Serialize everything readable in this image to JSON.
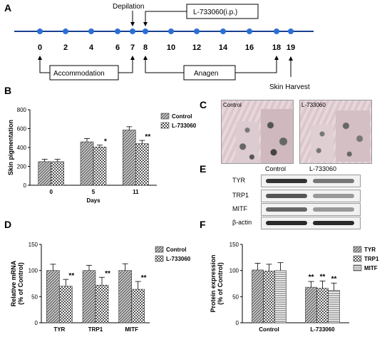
{
  "panel_letters": {
    "a": "A",
    "b": "B",
    "c": "C",
    "d": "D",
    "e": "E",
    "f": "F"
  },
  "timeline": {
    "days": [
      "0",
      "2",
      "4",
      "6",
      "7",
      "8",
      "10",
      "12",
      "14",
      "16",
      "18",
      "19"
    ],
    "depilation_label": "Depilation",
    "drug_label": "L-733060(i.p.)",
    "accommodation_label": "Accommodation",
    "anagen_label": "Anagen",
    "harvest_label": "Skin Harvest",
    "line_color": "#1a3f8f",
    "dot_color": "#2b6fd6"
  },
  "panel_c": {
    "control_label": "Control",
    "treated_label": "L-733060"
  },
  "panel_e": {
    "header_control": "Control",
    "header_treated": "L-733060",
    "rows": [
      "TYR",
      "TRP1",
      "MITF",
      "β-actin"
    ]
  },
  "chart_data": [
    {
      "type": "bar",
      "panel": "B",
      "ylabel": "Skin pigmentation",
      "xlabel": "Days",
      "categories": [
        "0",
        "5",
        "11"
      ],
      "ylim": [
        0,
        800
      ],
      "yticks": [
        "0",
        "200",
        "400",
        "600",
        "800"
      ],
      "series": [
        {
          "name": "Control",
          "values": [
            250,
            460,
            585
          ],
          "errors": [
            25,
            35,
            35
          ],
          "pattern": "hatch"
        },
        {
          "name": "L-733060",
          "values": [
            250,
            405,
            440
          ],
          "errors": [
            25,
            20,
            35
          ],
          "pattern": "check"
        }
      ],
      "significance": [
        "",
        "*",
        "**"
      ],
      "legend": "top-right"
    },
    {
      "type": "bar",
      "panel": "D",
      "ylabel": "Relative mRNA\n(% of Control)",
      "categories": [
        "TYR",
        "TRP1",
        "MITF"
      ],
      "ylim": [
        0,
        150
      ],
      "yticks": [
        "0",
        "50",
        "100",
        "150"
      ],
      "series": [
        {
          "name": "Control",
          "values": [
            100,
            100,
            100
          ],
          "errors": [
            12,
            10,
            13
          ],
          "pattern": "hatch"
        },
        {
          "name": "L-733060",
          "values": [
            70,
            72,
            64
          ],
          "errors": [
            13,
            15,
            15
          ],
          "pattern": "check"
        }
      ],
      "significance": [
        "**",
        "**",
        "**"
      ],
      "legend": "top-right"
    },
    {
      "type": "bar",
      "panel": "F",
      "ylabel": "Protein expression\n(% of Control)",
      "categories": [
        "Control",
        "L-733060"
      ],
      "ylim": [
        0,
        150
      ],
      "yticks": [
        "0",
        "50",
        "100",
        "150"
      ],
      "series": [
        {
          "name": "TYR",
          "values": [
            101,
            68
          ],
          "errors": [
            13,
            11
          ],
          "pattern": "hatch"
        },
        {
          "name": "TRP1",
          "values": [
            99,
            66
          ],
          "errors": [
            13,
            14
          ],
          "pattern": "check"
        },
        {
          "name": "MITF",
          "values": [
            100,
            62
          ],
          "errors": [
            15,
            14
          ],
          "pattern": "hlines"
        }
      ],
      "significance": [
        "",
        "**"
      ],
      "legend": "top-right"
    }
  ]
}
